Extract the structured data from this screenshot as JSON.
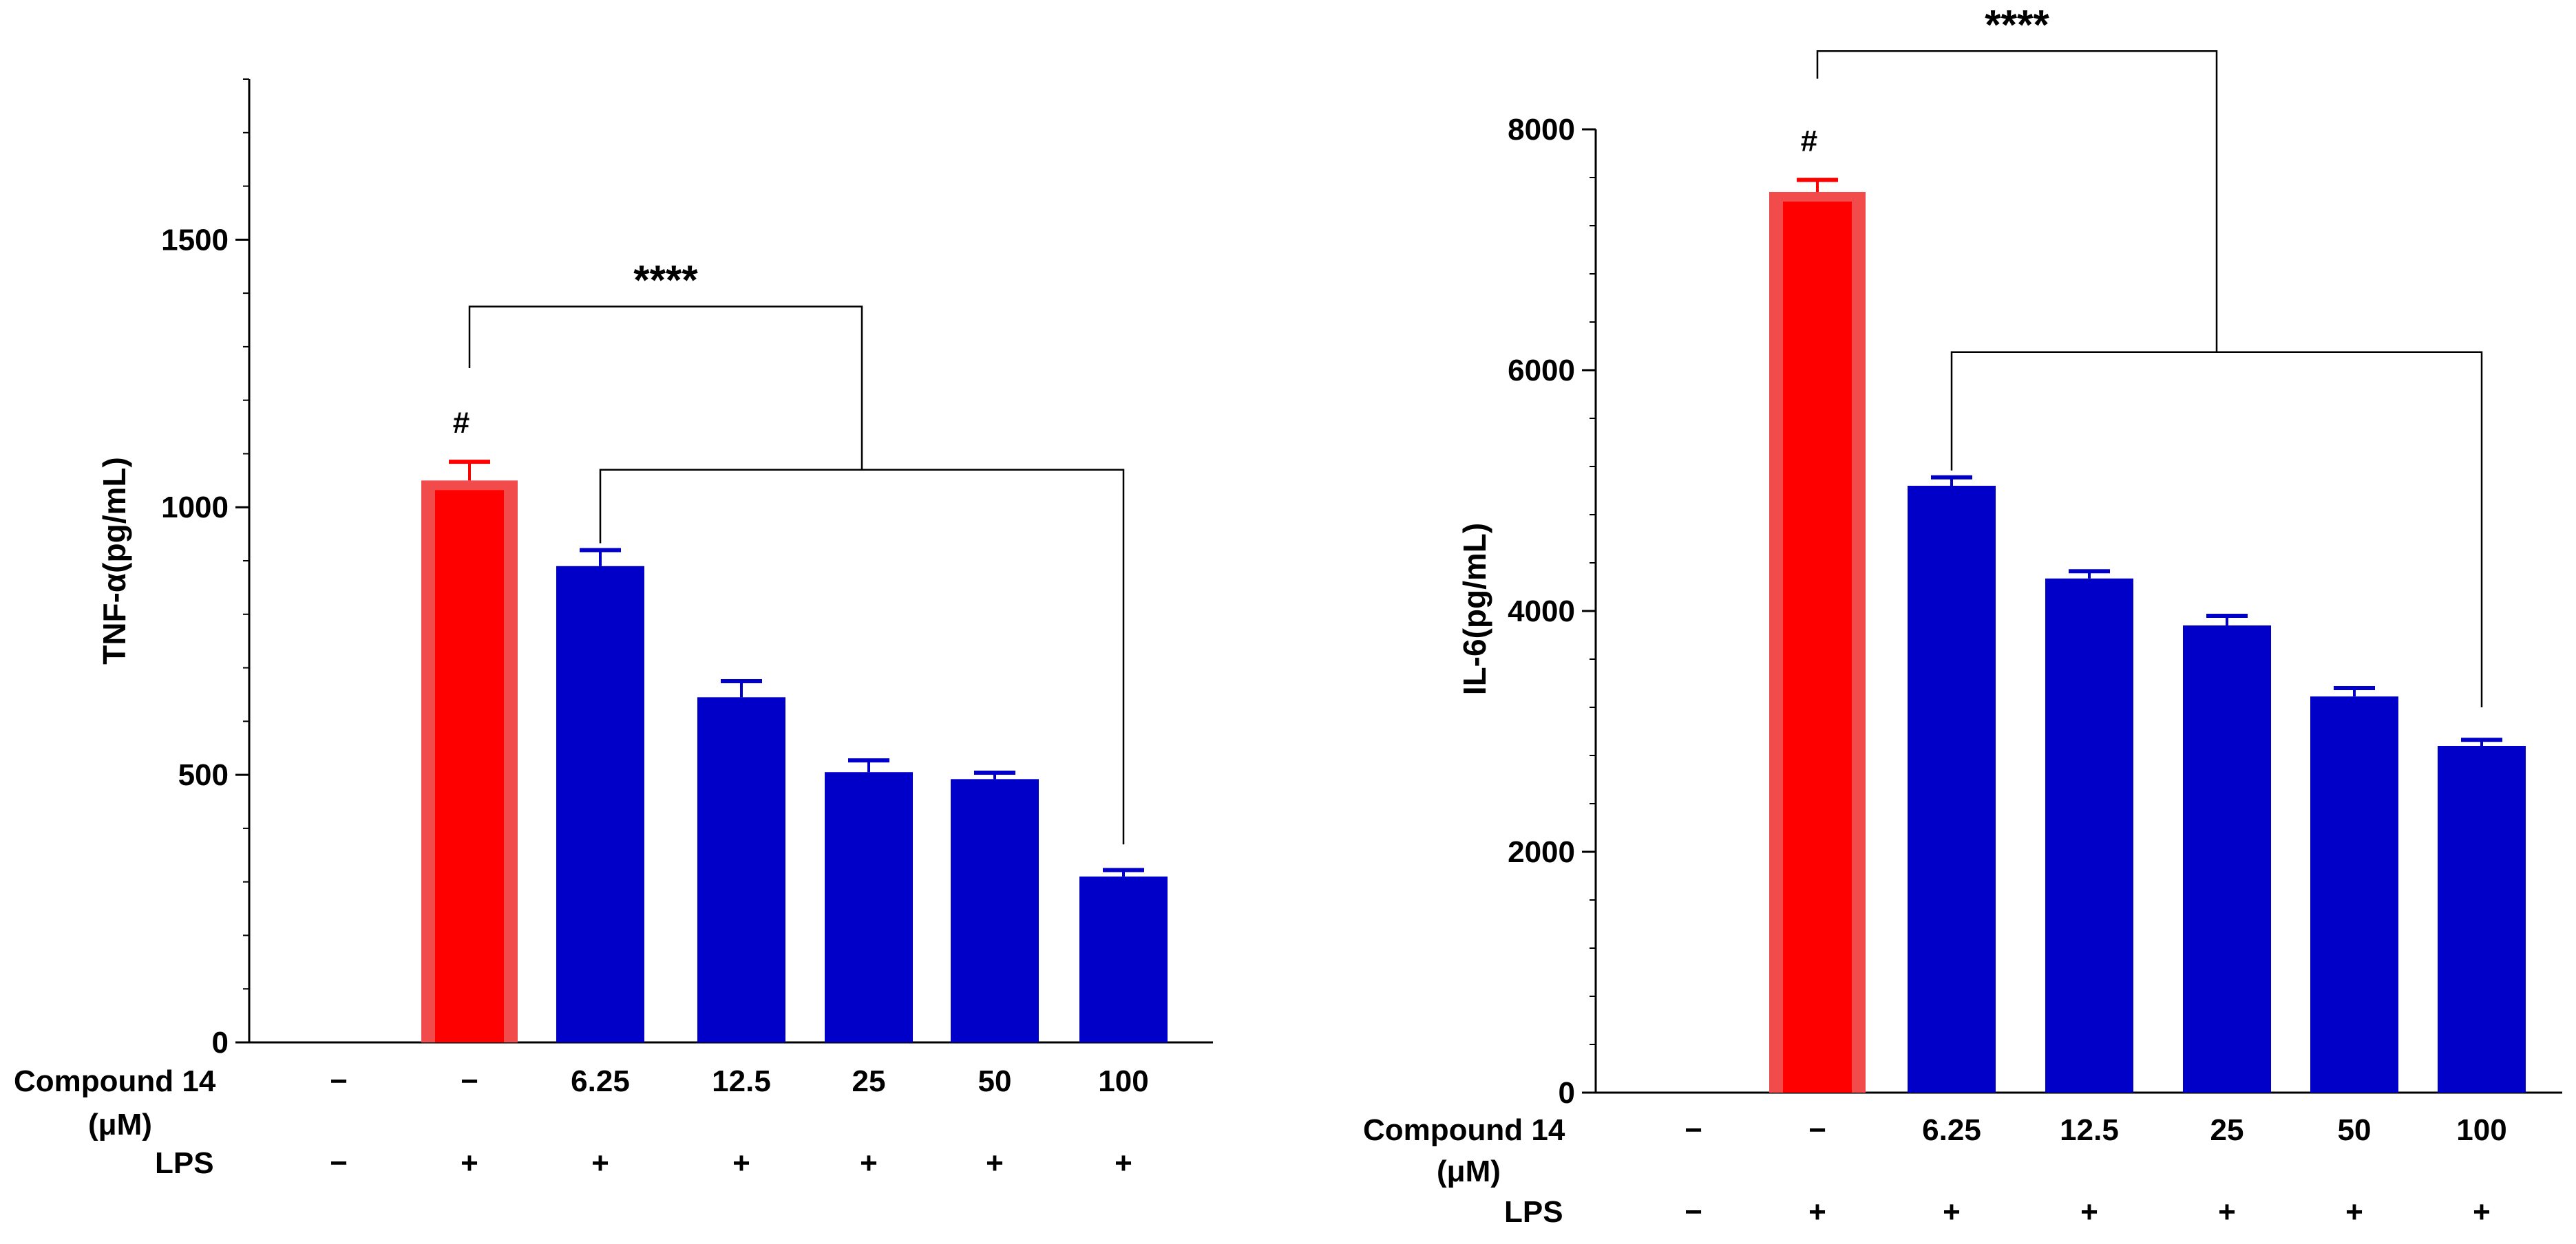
{
  "chart_data": [
    {
      "type": "bar",
      "ylabel": "TNF-α(pg/mL)",
      "ylim": [
        0,
        1800
      ],
      "yticks": [
        0,
        500,
        1000,
        1500
      ],
      "ytick_labels": [
        "0",
        "500",
        "1000",
        "1500"
      ],
      "minor_tick_step": 100,
      "categories": [
        "−",
        "−",
        "6.25",
        "12.5",
        "25",
        "50",
        "100"
      ],
      "lps": [
        "−",
        "+",
        "+",
        "+",
        "+",
        "+",
        "+"
      ],
      "values": [
        0,
        1050,
        890,
        645,
        505,
        492,
        310
      ],
      "errors": [
        0,
        35,
        30,
        30,
        22,
        12,
        12
      ],
      "bar_colors": [
        "#0000c8",
        "#ff0000",
        "#0000c8",
        "#0000c8",
        "#0000c8",
        "#0000c8",
        "#0000c8"
      ],
      "row_label_compound": "Compound 14",
      "row_label_unit": "(μM)",
      "row_label_lps": "LPS",
      "hash_annotation": "#",
      "significance_label": "****",
      "bracket_top": 1375,
      "bracket_control_start": 1260,
      "bracket_treated_top": 1070,
      "bracket_treated_end": 370
    },
    {
      "type": "bar",
      "ylabel": "IL-6(pg/mL)",
      "ylim": [
        0,
        8000
      ],
      "yticks": [
        0,
        2000,
        4000,
        6000,
        8000
      ],
      "ytick_labels": [
        "0",
        "2000",
        "4000",
        "6000",
        "8000"
      ],
      "minor_tick_step": 400,
      "categories": [
        "−",
        "−",
        "6.25",
        "12.5",
        "25",
        "50",
        "100"
      ],
      "lps": [
        "−",
        "+",
        "+",
        "+",
        "+",
        "+",
        "+"
      ],
      "values": [
        0,
        7480,
        5040,
        4270,
        3880,
        3290,
        2880
      ],
      "errors": [
        0,
        100,
        70,
        60,
        80,
        70,
        50
      ],
      "bar_colors": [
        "#0000c8",
        "#ff0000",
        "#0000c8",
        "#0000c8",
        "#0000c8",
        "#0000c8",
        "#0000c8"
      ],
      "row_label_compound": "Compound 14",
      "row_label_unit": "(μM)",
      "row_label_lps": "LPS",
      "hash_annotation": "#",
      "significance_label": "****",
      "bracket_top": 8650,
      "bracket_control_start": 8420,
      "bracket_treated_top": 6150,
      "bracket_treated_end": 3200
    }
  ]
}
